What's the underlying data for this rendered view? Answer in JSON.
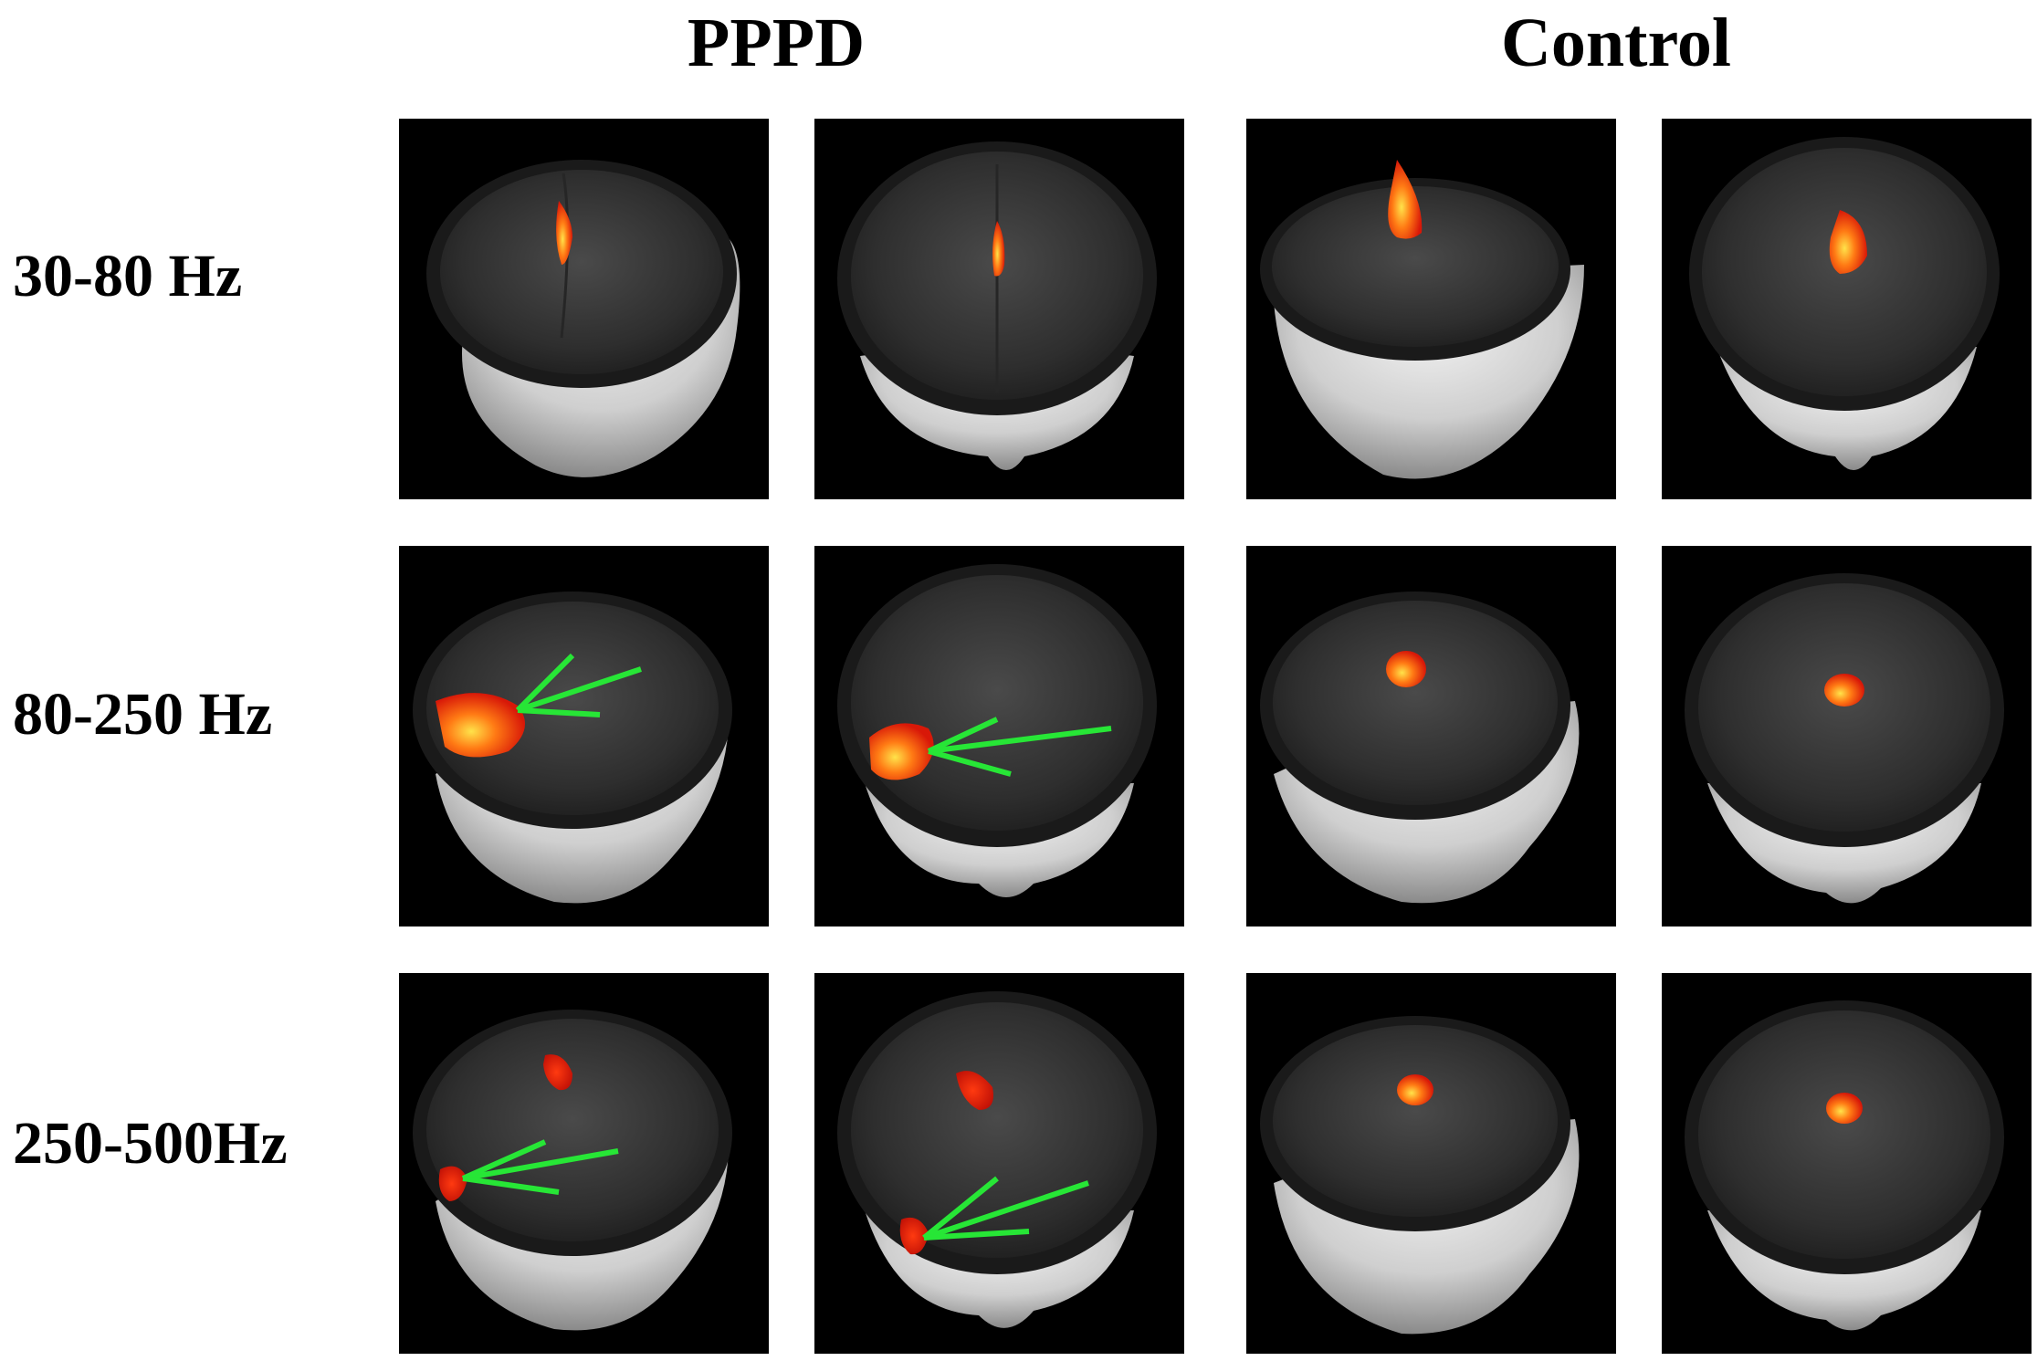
{
  "groups": [
    {
      "label": "PPPD"
    },
    {
      "label": "Control"
    }
  ],
  "rows": [
    {
      "label": "30-80 Hz"
    },
    {
      "label": "80-250 Hz"
    },
    {
      "label": "250-500Hz"
    }
  ],
  "colors": {
    "background": "#000000",
    "scalp": "#d9d9d9",
    "cortex": "#3a3a3a",
    "activation_core": "#ffd23a",
    "activation_outer": "#e01a0a",
    "arrow": "#27e636"
  }
}
